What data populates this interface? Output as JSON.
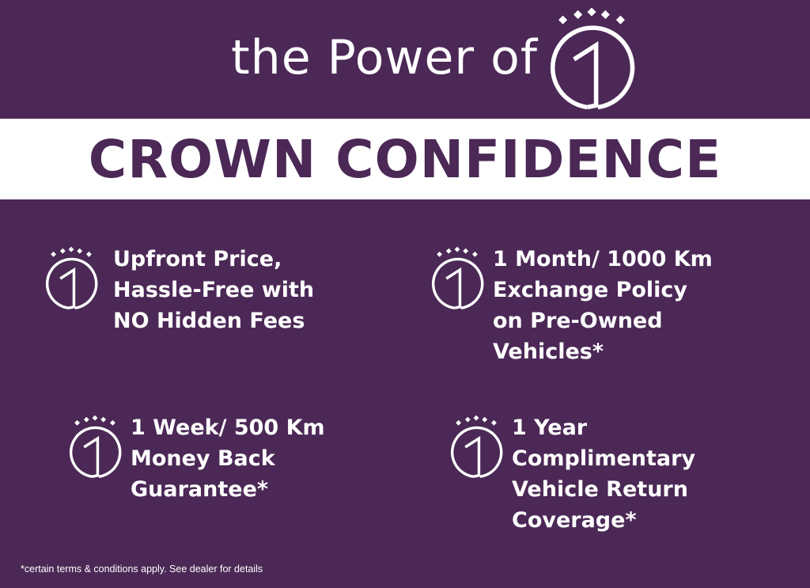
{
  "header": {
    "title": "the Power of",
    "logo_icon": "crown-one-icon"
  },
  "banner": {
    "text": "CROWN CONFIDENCE"
  },
  "colors": {
    "background": "#4b2856",
    "banner": "#ffffff",
    "text": "#ffffff"
  },
  "features": [
    {
      "icon": "crown-one-icon",
      "lines": [
        "Upfront Price,",
        "Hassle-Free with",
        "NO Hidden Fees"
      ]
    },
    {
      "icon": "crown-one-icon",
      "lines": [
        "1 Month/ 1000 Km",
        "Exchange Policy",
        "on Pre-Owned",
        "Vehicles*"
      ]
    },
    {
      "icon": "crown-one-icon",
      "lines": [
        "1 Week/ 500 Km",
        "Money Back",
        "Guarantee*"
      ]
    },
    {
      "icon": "crown-one-icon",
      "lines": [
        "1 Year",
        "Complimentary",
        "Vehicle Return",
        "Coverage*"
      ]
    }
  ],
  "footnote": "*certain terms & conditions apply. See dealer for details"
}
